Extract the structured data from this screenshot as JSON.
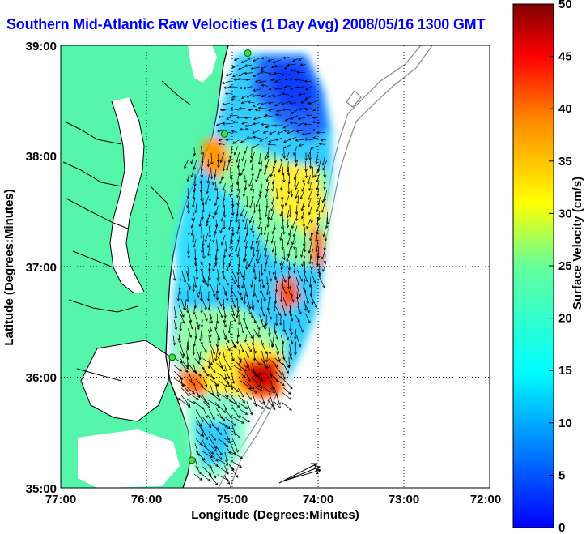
{
  "title": "Southern Mid-Atlantic Raw Velocities (1 Day Avg) 2008/05/16 1300 GMT",
  "x_axis": {
    "label": "Longitude (Degrees:Minutes)",
    "ticks": [
      "77:00",
      "76:00",
      "75:00",
      "74:00",
      "73:00",
      "72:00"
    ]
  },
  "y_axis": {
    "label": "Latitude (Degrees:Minutes)",
    "ticks": [
      "39:00",
      "38:00",
      "37:00",
      "36:00",
      "35:00"
    ]
  },
  "colorbar": {
    "label": "Surface Velocity (cm/s)",
    "ticks": [
      "50",
      "45",
      "40",
      "35",
      "30",
      "25",
      "20",
      "15",
      "10",
      "5",
      "0"
    ],
    "range": [
      0,
      50
    ],
    "colormap": "jet"
  },
  "colors": {
    "land": "#55f5aa",
    "title": "#0000ff",
    "stations": "#44dd44"
  },
  "map_extent": {
    "lon": [
      -77,
      -72
    ],
    "lat": [
      35,
      39
    ]
  },
  "grid": true,
  "stations": [
    {
      "lon": -74.82,
      "lat": 38.93
    },
    {
      "lon": -75.09,
      "lat": 38.2
    },
    {
      "lon": -75.7,
      "lat": 36.18
    },
    {
      "lon": -75.47,
      "lat": 35.25
    }
  ]
}
